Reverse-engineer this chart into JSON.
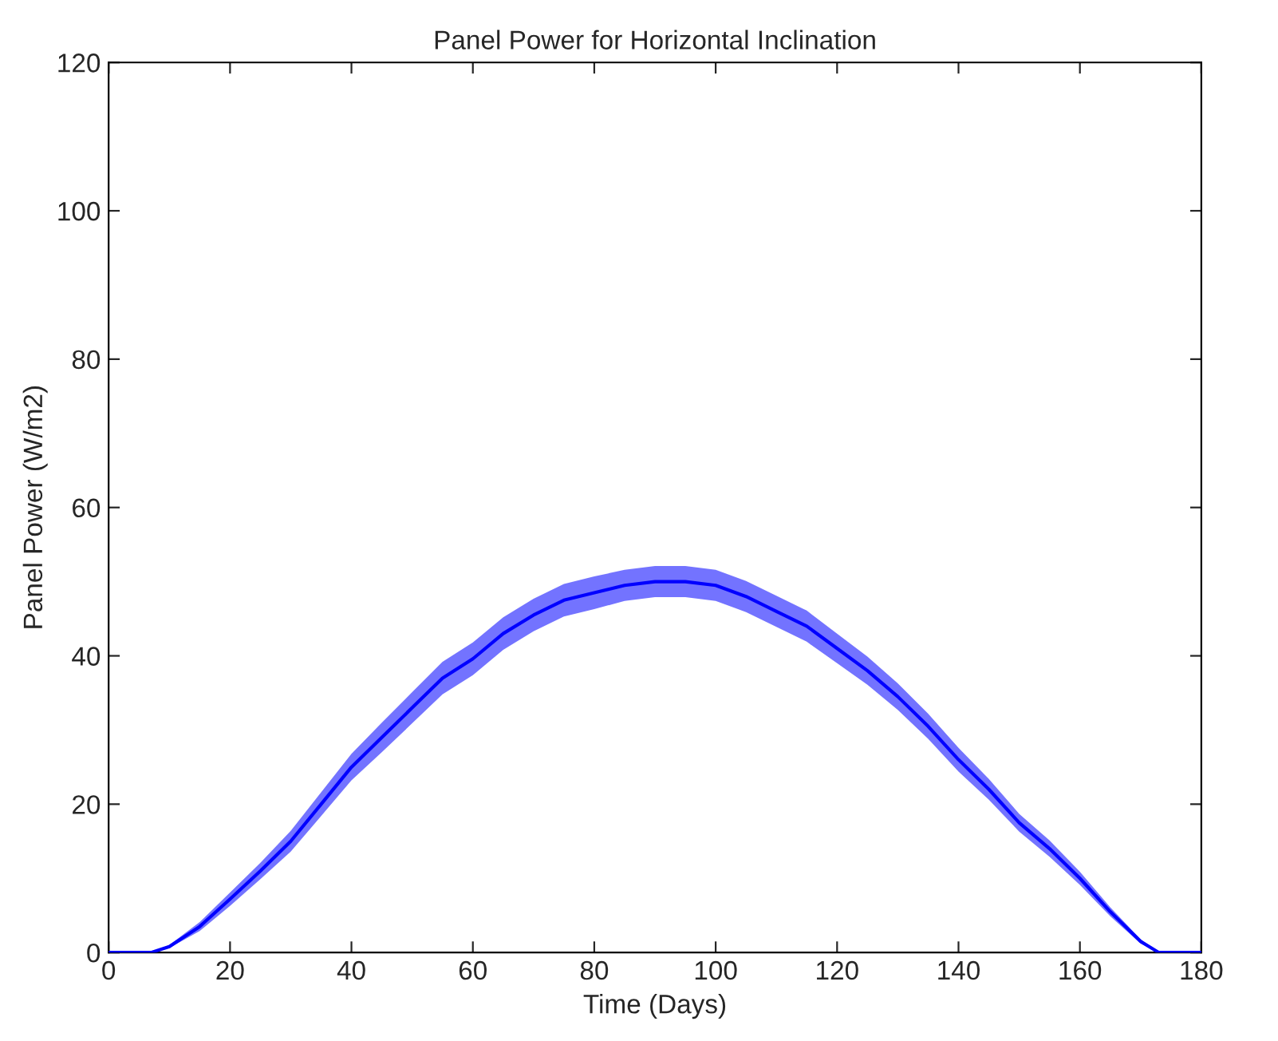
{
  "chart_data": {
    "type": "line",
    "title": "Panel Power for Horizontal Inclination",
    "xlabel": "Time (Days)",
    "ylabel": "Panel Power (W/m2)",
    "xlim": [
      0,
      180
    ],
    "xticks": [
      0,
      20,
      40,
      60,
      80,
      100,
      120,
      140,
      160,
      180
    ],
    "ylim": [
      0,
      120
    ],
    "yticks": [
      0,
      20,
      40,
      60,
      80,
      100,
      120
    ],
    "grid": false,
    "legend": false,
    "series": [
      {
        "color": "#0000ff",
        "x": [
          0,
          5,
          7,
          10,
          15,
          20,
          25,
          30,
          35,
          40,
          45,
          50,
          55,
          60,
          65,
          70,
          75,
          80,
          85,
          90,
          95,
          100,
          105,
          110,
          115,
          120,
          125,
          130,
          135,
          140,
          145,
          150,
          155,
          160,
          165,
          170,
          173,
          175,
          180
        ],
        "values": [
          0,
          0,
          0,
          0.8,
          3.5,
          7.2,
          11,
          15,
          20,
          25,
          29,
          33,
          37,
          39.6,
          43,
          45.5,
          47.5,
          48.5,
          49.5,
          50,
          50,
          49.5,
          48,
          46,
          44,
          41,
          38,
          34.5,
          30.5,
          26,
          22,
          17.5,
          14,
          10,
          5.5,
          1.5,
          0,
          0,
          0
        ],
        "lower": [
          0,
          0,
          0,
          0.6,
          2.9,
          6.3,
          9.9,
          13.6,
          18.4,
          23.2,
          27,
          30.9,
          34.8,
          37.4,
          40.8,
          43.3,
          45.3,
          46.3,
          47.4,
          47.9,
          47.9,
          47.4,
          45.9,
          43.9,
          41.9,
          39,
          36.1,
          32.7,
          28.8,
          24.4,
          20.6,
          16.3,
          12.9,
          9.1,
          4.9,
          1.2,
          0,
          0,
          0
        ],
        "upper": [
          0,
          0,
          0,
          1,
          4.1,
          8.1,
          12.1,
          16.4,
          21.6,
          26.8,
          31,
          35.1,
          39.2,
          41.8,
          45.2,
          47.7,
          49.7,
          50.7,
          51.6,
          52.1,
          52.1,
          51.6,
          50.1,
          48.1,
          46.1,
          43,
          39.9,
          36.3,
          32.2,
          27.6,
          23.4,
          18.7,
          15.1,
          10.9,
          6.1,
          1.8,
          0,
          0,
          0
        ]
      }
    ]
  }
}
